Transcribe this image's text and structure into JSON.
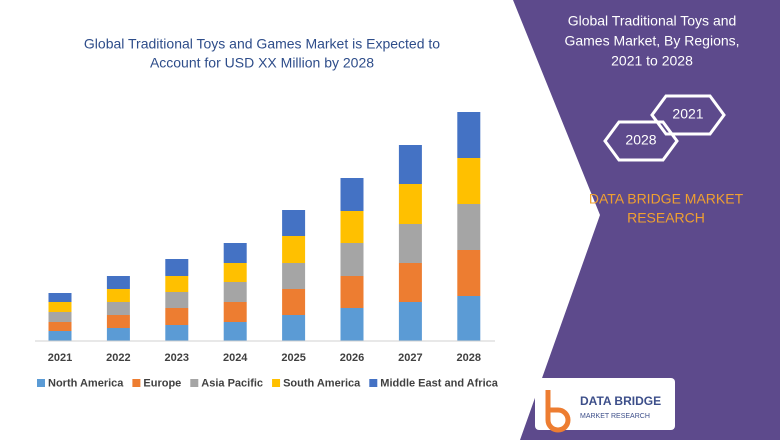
{
  "chart_data": {
    "type": "stacked-bar",
    "title_lines": [
      "Global Traditional Toys and Games Market is Expected to",
      "Account for USD XX Million by 2028"
    ],
    "categories": [
      "2021",
      "2022",
      "2023",
      "2024",
      "2025",
      "2026",
      "2027",
      "2028"
    ],
    "series": [
      {
        "name": "North America",
        "color": "#5b9bd5",
        "values": [
          10,
          13,
          16,
          19,
          26,
          33,
          39,
          45
        ]
      },
      {
        "name": "Europe",
        "color": "#ed7d31",
        "values": [
          9,
          13,
          17,
          20,
          26,
          32,
          39,
          46
        ]
      },
      {
        "name": "Asia Pacific",
        "color": "#a5a5a5",
        "values": [
          10,
          13,
          16,
          20,
          26,
          33,
          39,
          46
        ]
      },
      {
        "name": "South America",
        "color": "#ffc000",
        "values": [
          10,
          13,
          16,
          19,
          27,
          32,
          40,
          46
        ]
      },
      {
        "name": "Middle East and Africa",
        "color": "#4472c4",
        "values": [
          9,
          13,
          17,
          20,
          26,
          33,
          39,
          46
        ]
      }
    ]
  },
  "panel": {
    "heading_lines": [
      "Global Traditional Toys and",
      "Games Market, By Regions,",
      "2021 to 2028"
    ],
    "years": [
      "2021",
      "2028"
    ],
    "brand_lines": [
      "DATA BRIDGE MARKET",
      "RESEARCH"
    ]
  },
  "logo": {
    "name": "DATA BRIDGE",
    "tagline": "MARKET RESEARCH"
  }
}
